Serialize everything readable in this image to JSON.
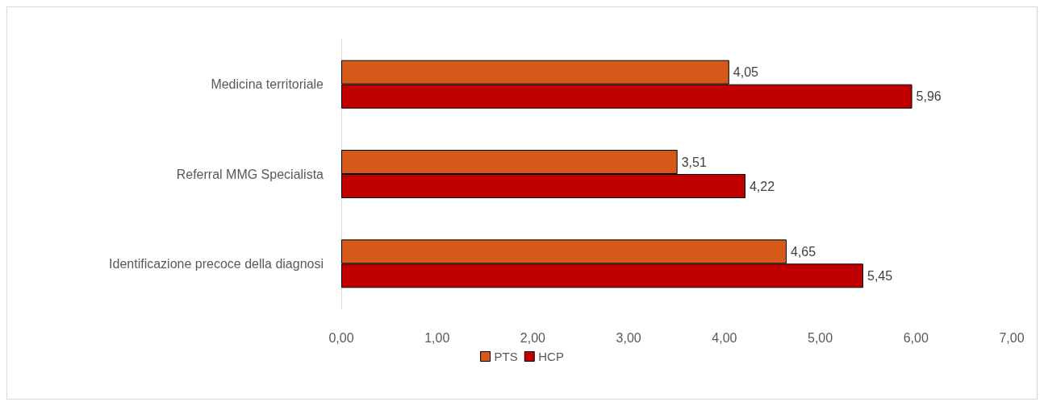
{
  "chart_data": {
    "type": "bar",
    "orientation": "horizontal",
    "categories": [
      "Medicina territoriale",
      "Referral MMG Specialista",
      "Identificazione precoce della diagnosi"
    ],
    "series": [
      {
        "name": "PTS",
        "color": "#d55a1a",
        "values": [
          4.05,
          3.51,
          4.65
        ],
        "value_labels": [
          "4,05",
          "3,51",
          "4,65"
        ]
      },
      {
        "name": "HCP",
        "color": "#c00000",
        "values": [
          5.96,
          4.22,
          5.45
        ],
        "value_labels": [
          "5,96",
          "4,22",
          "5,45"
        ]
      }
    ],
    "xlim": [
      0,
      7
    ],
    "xticks": [
      {
        "value": 0,
        "label": "0,00"
      },
      {
        "value": 1,
        "label": "1,00"
      },
      {
        "value": 2,
        "label": "2,00"
      },
      {
        "value": 3,
        "label": "3,00"
      },
      {
        "value": 4,
        "label": "4,00"
      },
      {
        "value": 5,
        "label": "5,00"
      },
      {
        "value": 6,
        "label": "6,00"
      },
      {
        "value": 7,
        "label": "7,00"
      }
    ],
    "grid": false,
    "legend": "bottom"
  }
}
